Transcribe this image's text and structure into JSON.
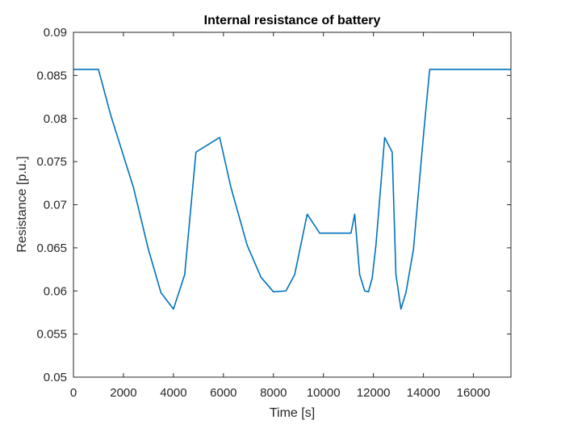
{
  "chart_data": {
    "type": "line",
    "title": "Internal resistance of battery",
    "xlabel": "Time [s]",
    "ylabel": "Resistance [p.u.]",
    "xlim": [
      0,
      17500
    ],
    "ylim": [
      0.05,
      0.09
    ],
    "xticks": [
      0,
      2000,
      4000,
      6000,
      8000,
      10000,
      12000,
      14000,
      16000
    ],
    "xtick_labels": [
      "0",
      "2000",
      "4000",
      "6000",
      "8000",
      "10000",
      "12000",
      "14000",
      "16000"
    ],
    "yticks": [
      0.05,
      0.055,
      0.06,
      0.065,
      0.07,
      0.075,
      0.08,
      0.085,
      0.09
    ],
    "ytick_labels": [
      "0.05",
      "0.055",
      "0.06",
      "0.065",
      "0.07",
      "0.075",
      "0.08",
      "0.085",
      "0.09"
    ],
    "grid": false,
    "line_color": "#0072BD",
    "series": [
      {
        "x": [
          0,
          1000,
          1500,
          2400,
          3000,
          3500,
          4000,
          4450,
          4900,
          5400,
          5850,
          6300,
          6950,
          7500,
          8000,
          8500,
          8850,
          9350,
          9850,
          10400,
          11100,
          11250,
          11450,
          11650,
          11800,
          11950,
          12100,
          12450,
          12750,
          12900,
          13100,
          13300,
          13600,
          14000,
          14250,
          17500
        ],
        "y": [
          0.0857,
          0.0857,
          0.0803,
          0.072,
          0.0648,
          0.0598,
          0.0579,
          0.0619,
          0.0761,
          0.077,
          0.0778,
          0.072,
          0.0653,
          0.0616,
          0.0599,
          0.06,
          0.0619,
          0.0689,
          0.0667,
          0.0667,
          0.0667,
          0.0689,
          0.0619,
          0.06,
          0.0599,
          0.0615,
          0.0653,
          0.0778,
          0.0761,
          0.0619,
          0.0579,
          0.0598,
          0.0648,
          0.078,
          0.0857,
          0.0857
        ]
      }
    ]
  }
}
